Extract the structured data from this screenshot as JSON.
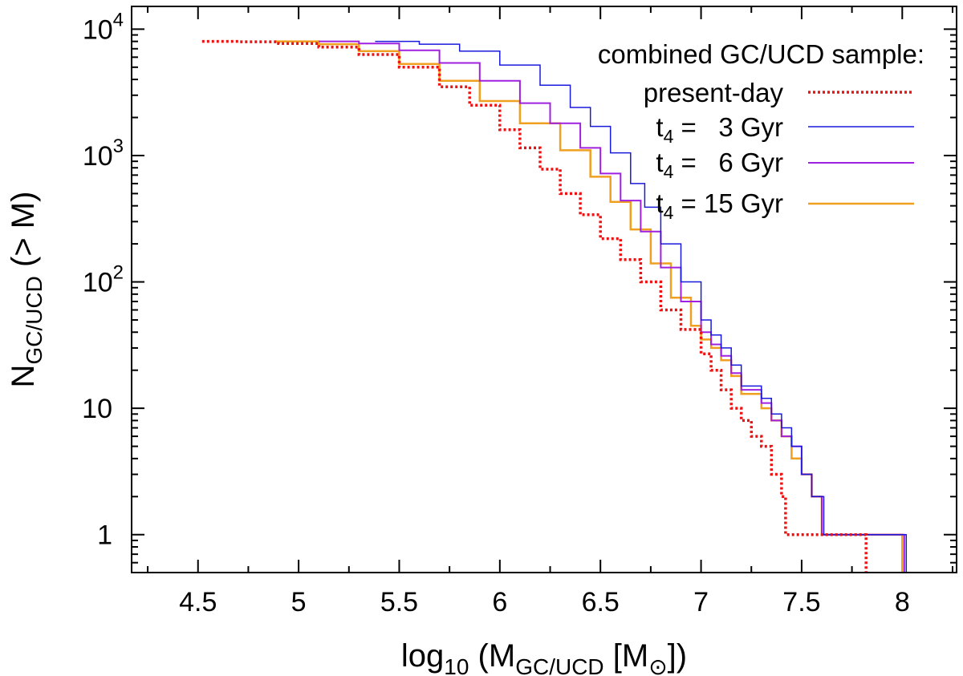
{
  "chart_data": {
    "type": "line",
    "title": "",
    "xlabel": {
      "main": "log",
      "main_sub": "10",
      "open": " (M",
      "sub": "GC/UCD",
      "mid": " [M",
      "sub2": "⊙",
      "close": "])"
    },
    "ylabel": {
      "main": "N",
      "sub": "GC/UCD",
      "rest": " (> M)"
    },
    "xlim": [
      4.17,
      8.27
    ],
    "ylim_log10": [
      -0.3,
      4.18
    ],
    "y_scale": "log",
    "x_ticks": [
      {
        "value": 4.5,
        "label": "4.5"
      },
      {
        "value": 5,
        "label": "5"
      },
      {
        "value": 5.5,
        "label": "5.5"
      },
      {
        "value": 6,
        "label": "6"
      },
      {
        "value": 6.5,
        "label": "6.5"
      },
      {
        "value": 7,
        "label": "7"
      },
      {
        "value": 7.5,
        "label": "7.5"
      },
      {
        "value": 8,
        "label": "8"
      }
    ],
    "y_ticks": [
      {
        "value": 1,
        "label": "1"
      },
      {
        "value": 10,
        "label": "10"
      },
      {
        "value": 100,
        "label": "10",
        "exp": "2"
      },
      {
        "value": 1000,
        "label": "10",
        "exp": "3"
      },
      {
        "value": 10000,
        "label": "10",
        "exp": "4"
      }
    ],
    "legend": {
      "title": "combined GC/UCD sample:",
      "position": "top-right"
    },
    "series": [
      {
        "name": "present-day",
        "label": {
          "main": "present-day"
        },
        "color": "#ee1111",
        "style": "dotted",
        "points": [
          [
            4.52,
            8000
          ],
          [
            4.7,
            7950
          ],
          [
            4.9,
            7700
          ],
          [
            5.1,
            7200
          ],
          [
            5.3,
            6300
          ],
          [
            5.5,
            5000
          ],
          [
            5.7,
            3500
          ],
          [
            5.85,
            2500
          ],
          [
            6.0,
            1600
          ],
          [
            6.1,
            1150
          ],
          [
            6.2,
            780
          ],
          [
            6.3,
            500
          ],
          [
            6.4,
            340
          ],
          [
            6.5,
            220
          ],
          [
            6.6,
            150
          ],
          [
            6.7,
            100
          ],
          [
            6.8,
            60
          ],
          [
            6.9,
            42
          ],
          [
            7.0,
            27
          ],
          [
            7.05,
            20
          ],
          [
            7.1,
            14
          ],
          [
            7.15,
            10
          ],
          [
            7.2,
            8
          ],
          [
            7.25,
            6
          ],
          [
            7.3,
            5
          ],
          [
            7.35,
            3
          ],
          [
            7.4,
            2
          ],
          [
            7.42,
            1
          ],
          [
            7.6,
            1
          ],
          [
            7.82,
            1
          ],
          [
            7.82,
            0.5
          ]
        ]
      },
      {
        "name": "t4 = 3 Gyr",
        "label": {
          "main": "t",
          "sub": "4",
          "rest": " =   3 Gyr"
        },
        "color": "#1a1adc",
        "style": "solid",
        "points": [
          [
            5.38,
            8000
          ],
          [
            5.6,
            7600
          ],
          [
            5.8,
            6700
          ],
          [
            6.0,
            5200
          ],
          [
            6.2,
            3600
          ],
          [
            6.35,
            2400
          ],
          [
            6.45,
            1700
          ],
          [
            6.55,
            1050
          ],
          [
            6.65,
            600
          ],
          [
            6.72,
            390
          ],
          [
            6.8,
            200
          ],
          [
            6.9,
            100
          ],
          [
            7.0,
            50
          ],
          [
            7.05,
            38
          ],
          [
            7.1,
            30
          ],
          [
            7.15,
            22
          ],
          [
            7.2,
            15
          ],
          [
            7.3,
            12
          ],
          [
            7.35,
            9
          ],
          [
            7.4,
            7
          ],
          [
            7.45,
            5
          ],
          [
            7.5,
            3
          ],
          [
            7.55,
            2
          ],
          [
            7.6,
            2
          ],
          [
            7.61,
            1
          ],
          [
            8.02,
            1
          ],
          [
            8.02,
            0.5
          ]
        ]
      },
      {
        "name": "t4 = 6 Gyr",
        "label": {
          "main": "t",
          "sub": "4",
          "rest": " =   6 Gyr"
        },
        "color": "#a020e0",
        "style": "solid",
        "points": [
          [
            5.1,
            8000
          ],
          [
            5.3,
            7700
          ],
          [
            5.5,
            6800
          ],
          [
            5.7,
            5400
          ],
          [
            5.9,
            3900
          ],
          [
            6.1,
            2600
          ],
          [
            6.25,
            1800
          ],
          [
            6.4,
            1150
          ],
          [
            6.5,
            720
          ],
          [
            6.6,
            440
          ],
          [
            6.7,
            250
          ],
          [
            6.8,
            130
          ],
          [
            6.9,
            70
          ],
          [
            7.0,
            40
          ],
          [
            7.05,
            32
          ],
          [
            7.1,
            26
          ],
          [
            7.15,
            19
          ],
          [
            7.2,
            14
          ],
          [
            7.3,
            11
          ],
          [
            7.35,
            8
          ],
          [
            7.4,
            6
          ],
          [
            7.45,
            5
          ],
          [
            7.5,
            3
          ],
          [
            7.55,
            2
          ],
          [
            7.6,
            2
          ],
          [
            7.6,
            1
          ],
          [
            8.01,
            1
          ],
          [
            8.01,
            0.5
          ]
        ]
      },
      {
        "name": "t4 = 15 Gyr",
        "label": {
          "main": "t",
          "sub": "4",
          "rest": " = 15 Gyr"
        },
        "color": "#f0a020",
        "style": "solid",
        "points": [
          [
            4.88,
            8000
          ],
          [
            5.1,
            7600
          ],
          [
            5.3,
            6700
          ],
          [
            5.5,
            5300
          ],
          [
            5.7,
            3900
          ],
          [
            5.9,
            2700
          ],
          [
            6.1,
            1800
          ],
          [
            6.3,
            1100
          ],
          [
            6.45,
            680
          ],
          [
            6.55,
            430
          ],
          [
            6.65,
            260
          ],
          [
            6.75,
            140
          ],
          [
            6.85,
            75
          ],
          [
            6.95,
            45
          ],
          [
            7.0,
            35
          ],
          [
            7.05,
            30
          ],
          [
            7.1,
            24
          ],
          [
            7.15,
            18
          ],
          [
            7.2,
            13
          ],
          [
            7.3,
            10
          ],
          [
            7.35,
            8
          ],
          [
            7.4,
            6
          ],
          [
            7.45,
            4
          ],
          [
            7.5,
            3
          ],
          [
            7.55,
            2
          ],
          [
            7.6,
            2
          ],
          [
            7.6,
            1
          ],
          [
            8.0,
            1
          ],
          [
            8.0,
            0.5
          ]
        ]
      }
    ]
  }
}
